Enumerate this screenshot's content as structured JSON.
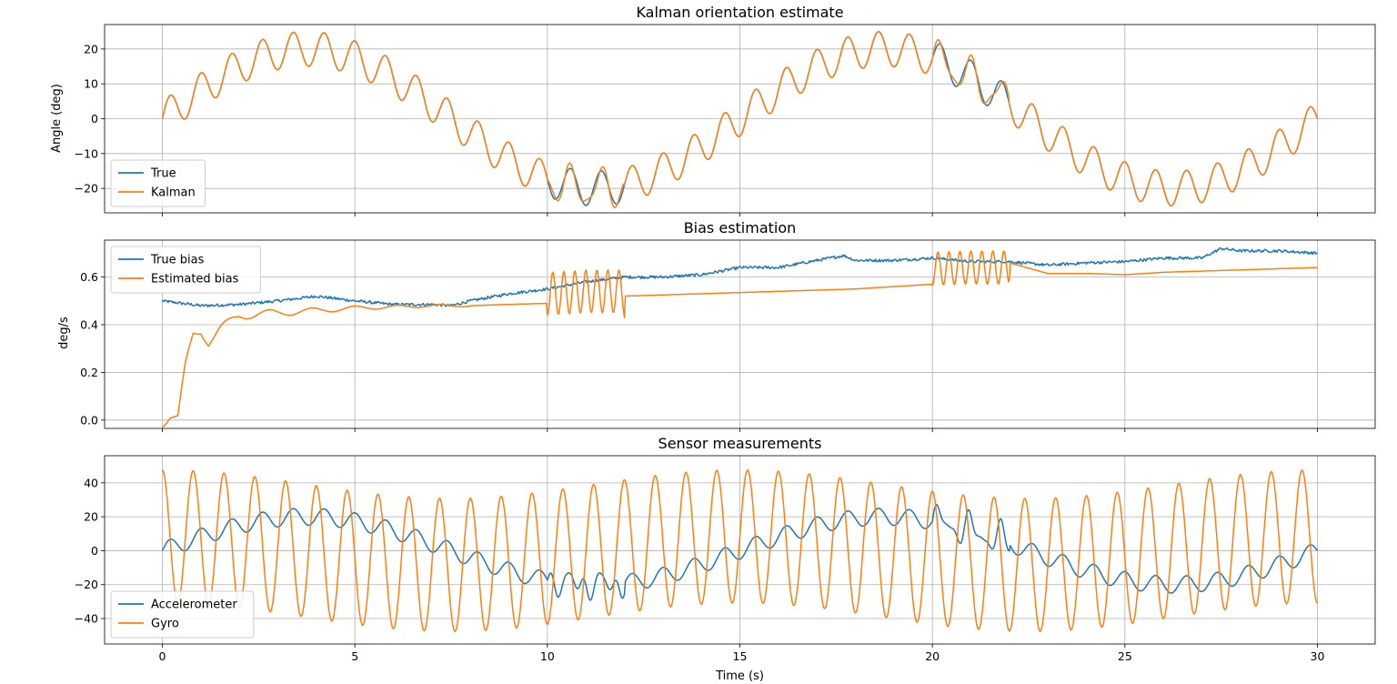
{
  "colors": {
    "blue": "#1f77b4",
    "orange": "#ff7f0e",
    "grid": "#b0b0b0",
    "frame": "#000000",
    "legend_edge": "#cccccc"
  },
  "chart_data": [
    {
      "type": "line",
      "title": "Kalman orientation estimate",
      "xlabel": "",
      "ylabel": "Angle (deg)",
      "xlim": [
        -1.5,
        31.5
      ],
      "ylim": [
        -27,
        27
      ],
      "xticks": [
        0,
        5,
        10,
        15,
        20,
        25,
        30
      ],
      "xtick_labels": [
        "",
        "",
        "",
        "",
        "",
        "",
        ""
      ],
      "yticks": [
        -20,
        -10,
        0,
        10,
        20
      ],
      "ytick_labels": [
        "−20",
        "−10",
        "0",
        "10",
        "20"
      ],
      "grid": true,
      "legend_position": "lower-left",
      "model": "A(t)=20*sin(2*pi*t/15)+5*sin(2*pi*t/0.8), dt=0.025 s, t=0..30",
      "series": [
        {
          "name": "True",
          "color": "#1f77b4",
          "kind": "angle"
        },
        {
          "name": "Kalman",
          "color": "#ff7f0e",
          "kind": "angle_est"
        }
      ]
    },
    {
      "type": "line",
      "title": "Bias estimation",
      "xlabel": "",
      "ylabel": "deg/s",
      "xlim": [
        -1.5,
        31.5
      ],
      "ylim": [
        -0.035,
        0.755
      ],
      "xticks": [
        0,
        5,
        10,
        15,
        20,
        25,
        30
      ],
      "xtick_labels": [
        "",
        "",
        "",
        "",
        "",
        "",
        ""
      ],
      "yticks": [
        0.0,
        0.2,
        0.4,
        0.6
      ],
      "ytick_labels": [
        "0.0",
        "0.2",
        "0.4",
        "0.6"
      ],
      "grid": true,
      "legend_position": "upper-left",
      "series": [
        {
          "name": "True bias",
          "color": "#1f77b4",
          "kind": "walk",
          "x": [
            0,
            0.5,
            1,
            2,
            3,
            4,
            5,
            6,
            7,
            7.5,
            8,
            9,
            10,
            11,
            12,
            13,
            14,
            15,
            16,
            17,
            17.7,
            18,
            19,
            20,
            21,
            22,
            23,
            24,
            25,
            26,
            27,
            27.5,
            28,
            29,
            30
          ],
          "values": [
            0.5,
            0.49,
            0.48,
            0.485,
            0.5,
            0.52,
            0.5,
            0.485,
            0.485,
            0.48,
            0.5,
            0.53,
            0.55,
            0.58,
            0.6,
            0.6,
            0.61,
            0.64,
            0.64,
            0.67,
            0.69,
            0.67,
            0.67,
            0.68,
            0.665,
            0.665,
            0.65,
            0.66,
            0.665,
            0.68,
            0.68,
            0.72,
            0.71,
            0.71,
            0.7
          ]
        },
        {
          "name": "Estimated bias",
          "color": "#ff7f0e",
          "kind": "estimate",
          "x": [
            0,
            0.2,
            0.4,
            0.6,
            0.8,
            1.0,
            1.2,
            1.5,
            2,
            3,
            4,
            5,
            6,
            7,
            8,
            9,
            9.99,
            10.0,
            11,
            11.99,
            12.0,
            13,
            14,
            15,
            16,
            17,
            18,
            19,
            19.99,
            20.0,
            21,
            21.99,
            22.0,
            23,
            24,
            25,
            26,
            27,
            28,
            29,
            30
          ],
          "values": [
            0.0,
            0.02,
            0.0,
            0.22,
            0.36,
            0.38,
            0.33,
            0.38,
            0.44,
            0.45,
            0.46,
            0.47,
            0.475,
            0.48,
            0.48,
            0.485,
            0.49,
            0.53,
            0.54,
            0.54,
            0.52,
            0.525,
            0.53,
            0.535,
            0.54,
            0.545,
            0.55,
            0.56,
            0.57,
            0.635,
            0.64,
            0.64,
            0.66,
            0.615,
            0.615,
            0.61,
            0.62,
            0.625,
            0.63,
            0.635,
            0.64
          ],
          "oscillations": [
            {
              "t0": 0.0,
              "t1": 8.0,
              "amp": 0.03,
              "freq": 0.9,
              "decay": 0.25
            },
            {
              "t0": 10.0,
              "t1": 12.0,
              "amp": 0.09,
              "freq": 3.5,
              "decay": 0.0
            },
            {
              "t0": 20.0,
              "t1": 22.0,
              "amp": 0.07,
              "freq": 3.5,
              "decay": 0.0
            }
          ]
        }
      ]
    },
    {
      "type": "line",
      "title": "Sensor measurements",
      "xlabel": "Time (s)",
      "ylabel": "",
      "xlim": [
        -1.5,
        31.5
      ],
      "ylim": [
        -55,
        56
      ],
      "xticks": [
        0,
        5,
        10,
        15,
        20,
        25,
        30
      ],
      "xtick_labels": [
        "0",
        "5",
        "10",
        "15",
        "20",
        "25",
        "30"
      ],
      "yticks": [
        -40,
        -20,
        0,
        20,
        40
      ],
      "ytick_labels": [
        "−40",
        "−20",
        "0",
        "20",
        "40"
      ],
      "grid": true,
      "legend_position": "lower-left",
      "series": [
        {
          "name": "Accelerometer",
          "color": "#1f77b4",
          "kind": "accel",
          "glitch_windows": [
            [
              10,
              12
            ],
            [
              20,
              22
            ]
          ]
        },
        {
          "name": "Gyro",
          "color": "#ff7f0e",
          "kind": "gyro"
        }
      ]
    }
  ]
}
